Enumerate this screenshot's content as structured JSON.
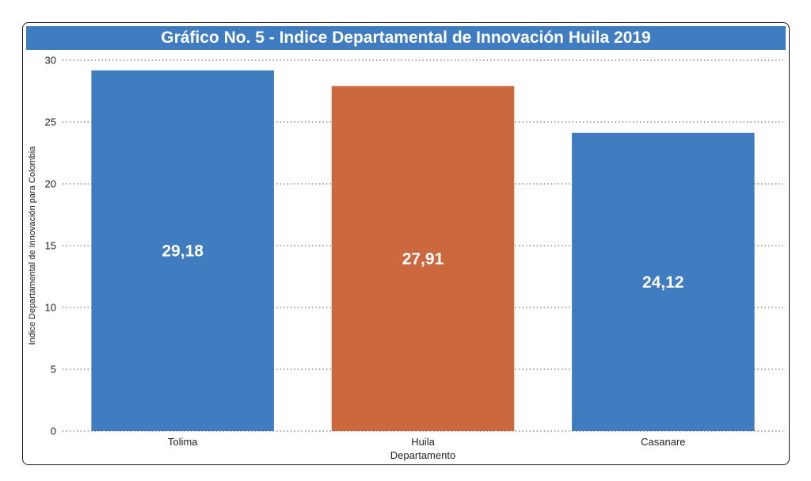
{
  "chart_data": {
    "type": "bar",
    "title": "Gráfico No. 5 - Indice Departamental de Innovación Huila 2019",
    "xlabel": "Departamento",
    "ylabel": "Indice Departamental de Innovación para Colombia",
    "categories": [
      "Tolima",
      "Huila",
      "Casanare"
    ],
    "values": [
      29.18,
      27.91,
      24.12
    ],
    "value_labels": [
      "29,18",
      "27,91",
      "24,12"
    ],
    "bar_colors": [
      "#3f7cc0",
      "#cc683d",
      "#3f7cc0"
    ],
    "ylim": [
      0,
      30
    ],
    "yticks": [
      0,
      5,
      10,
      15,
      20,
      25,
      30
    ],
    "ytick_labels": [
      "0",
      "5",
      "10",
      "15",
      "20",
      "25",
      "30"
    ],
    "grid": true,
    "grid_style": "dotted",
    "legend": "none"
  },
  "colors": {
    "title_background": "#3f7cc0",
    "title_text": "#ffffff",
    "bar_label_text": "#ffffff"
  }
}
